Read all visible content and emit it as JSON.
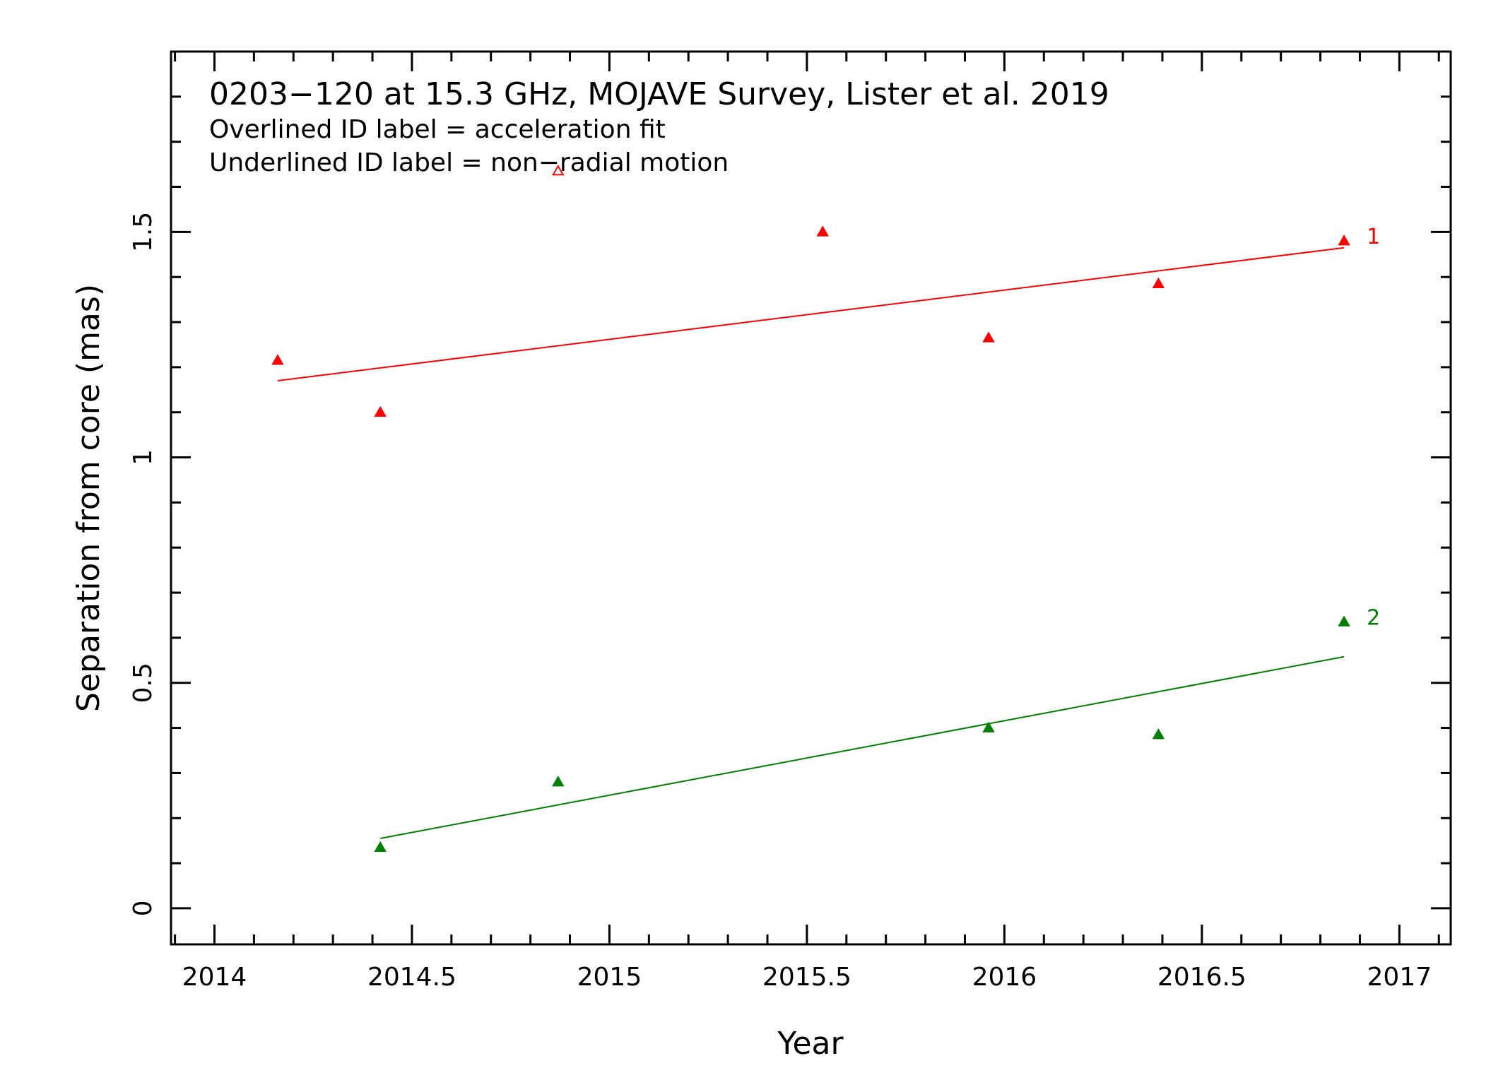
{
  "chart_data": {
    "type": "scatter",
    "title": "0203−120 at 15.3 GHz, MOJAVE Survey, Lister et al. 2019",
    "subtitles": [
      "Overlined ID label = acceleration fit",
      "Underlined ID label = non−radial motion"
    ],
    "xlabel": "Year",
    "ylabel": "Separation from core (mas)",
    "xlim": [
      2013.89,
      2017.13
    ],
    "ylim": [
      -0.08,
      1.9
    ],
    "xticks": [
      2014,
      2014.5,
      2015,
      2015.5,
      2016,
      2016.5,
      2017
    ],
    "xtick_labels": [
      "2014",
      "2014.5",
      "2015",
      "2015.5",
      "2016",
      "2016.5",
      "2017"
    ],
    "yticks": [
      0,
      0.5,
      1,
      1.5
    ],
    "ytick_labels": [
      "0",
      "0.5",
      "1",
      "1.5"
    ],
    "grid": false,
    "series": [
      {
        "name": "1",
        "color": "#ff0000",
        "points": [
          {
            "x": 2014.16,
            "y": 1.215,
            "filled": true
          },
          {
            "x": 2014.42,
            "y": 1.1,
            "filled": true
          },
          {
            "x": 2014.87,
            "y": 1.635,
            "filled": false
          },
          {
            "x": 2015.54,
            "y": 1.5,
            "filled": true
          },
          {
            "x": 2015.96,
            "y": 1.265,
            "filled": true
          },
          {
            "x": 2016.39,
            "y": 1.385,
            "filled": true
          },
          {
            "x": 2016.86,
            "y": 1.48,
            "filled": true
          }
        ],
        "fit": [
          {
            "x": 2014.16,
            "y": 1.17
          },
          {
            "x": 2016.86,
            "y": 1.465
          }
        ]
      },
      {
        "name": "2",
        "color": "#008000",
        "points": [
          {
            "x": 2014.42,
            "y": 0.135,
            "filled": true
          },
          {
            "x": 2014.87,
            "y": 0.28,
            "filled": true
          },
          {
            "x": 2015.96,
            "y": 0.4,
            "filled": true
          },
          {
            "x": 2016.39,
            "y": 0.385,
            "filled": true
          },
          {
            "x": 2016.86,
            "y": 0.635,
            "filled": true
          }
        ],
        "fit": [
          {
            "x": 2014.42,
            "y": 0.155
          },
          {
            "x": 2016.86,
            "y": 0.558
          }
        ]
      }
    ]
  }
}
